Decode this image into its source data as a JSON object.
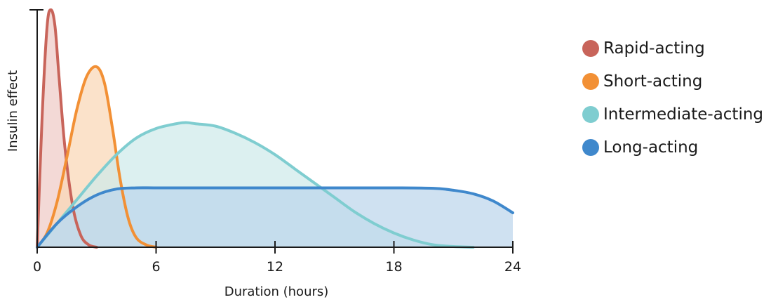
{
  "chart_data": {
    "type": "area",
    "title": "",
    "xlabel": "Duration (hours)",
    "ylabel": "Insulin effect",
    "xlim": [
      0,
      24
    ],
    "ylim": [
      0,
      1
    ],
    "xticks": [
      "0",
      "6",
      "12",
      "18",
      "24"
    ],
    "grid": false,
    "legend_position": "right",
    "series": [
      {
        "name": "Rapid-acting",
        "color": "#c8645a",
        "fill": "#eecbc6",
        "x": [
          0,
          0.25,
          0.5,
          0.7,
          0.9,
          1.1,
          1.4,
          1.8,
          2.2,
          2.6,
          3.0
        ],
        "y": [
          0,
          0.55,
          0.93,
          1.0,
          0.93,
          0.72,
          0.42,
          0.17,
          0.05,
          0.01,
          0
        ]
      },
      {
        "name": "Short-acting",
        "color": "#f29035",
        "fill": "#f9d7b5",
        "x": [
          0,
          0.5,
          1.0,
          1.5,
          2.0,
          2.5,
          3.0,
          3.4,
          3.8,
          4.2,
          4.6,
          5.0,
          5.5,
          6.0
        ],
        "y": [
          0,
          0.06,
          0.19,
          0.38,
          0.58,
          0.72,
          0.76,
          0.69,
          0.5,
          0.28,
          0.12,
          0.04,
          0.01,
          0
        ]
      },
      {
        "name": "Intermediate-acting",
        "color": "#7fcdd0",
        "fill": "#cfeaea",
        "x": [
          0,
          1,
          2,
          3,
          4,
          5,
          6,
          7,
          7.5,
          8,
          9,
          10,
          11,
          12,
          13,
          14,
          15,
          16,
          17,
          18,
          19,
          20,
          21,
          22
        ],
        "y": [
          0,
          0.1,
          0.2,
          0.3,
          0.39,
          0.46,
          0.5,
          0.52,
          0.525,
          0.52,
          0.51,
          0.48,
          0.44,
          0.39,
          0.33,
          0.27,
          0.21,
          0.15,
          0.1,
          0.06,
          0.03,
          0.01,
          0.003,
          0
        ]
      },
      {
        "name": "Long-acting",
        "color": "#3f88cc",
        "fill": "#bcd5ec",
        "x": [
          0,
          1,
          2,
          3,
          4,
          5,
          6,
          8,
          10,
          12,
          14,
          16,
          18,
          20,
          21,
          22,
          23,
          24
        ],
        "y": [
          0,
          0.1,
          0.17,
          0.22,
          0.245,
          0.25,
          0.25,
          0.25,
          0.25,
          0.25,
          0.25,
          0.25,
          0.25,
          0.248,
          0.24,
          0.225,
          0.195,
          0.145
        ]
      }
    ]
  }
}
